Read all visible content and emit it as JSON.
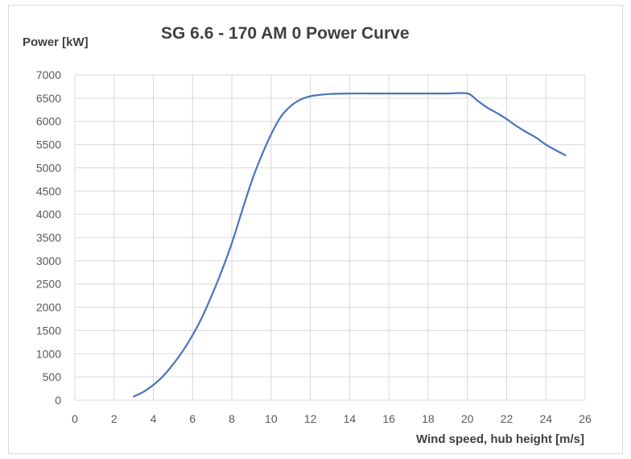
{
  "chart_data": {
    "type": "line",
    "title": "SG 6.6 - 170 AM 0 Power Curve",
    "ylabel": "Power [kW]",
    "xlabel": "Wind speed, hub height [m/s]",
    "xlim": [
      0,
      26
    ],
    "ylim": [
      0,
      7000
    ],
    "xticks": [
      0,
      2,
      4,
      6,
      8,
      10,
      12,
      14,
      16,
      18,
      20,
      22,
      24,
      26
    ],
    "yticks": [
      0,
      500,
      1000,
      1500,
      2000,
      2500,
      3000,
      3500,
      4000,
      4500,
      5000,
      5500,
      6000,
      6500,
      7000
    ],
    "grid": true,
    "series": [
      {
        "color": "#4a74c0",
        "x": [
          3,
          3.5,
          4,
          4.5,
          5,
          5.5,
          6,
          6.5,
          7,
          7.5,
          8,
          8.5,
          9,
          9.5,
          10,
          10.5,
          11,
          11.5,
          12,
          12.5,
          13,
          14,
          15,
          16,
          17,
          18,
          19,
          20,
          20.5,
          21,
          21.5,
          22,
          22.5,
          23,
          23.5,
          24,
          24.5,
          25
        ],
        "y": [
          80,
          180,
          330,
          520,
          770,
          1060,
          1400,
          1800,
          2280,
          2800,
          3380,
          4050,
          4700,
          5250,
          5720,
          6100,
          6330,
          6470,
          6540,
          6570,
          6590,
          6600,
          6600,
          6600,
          6600,
          6600,
          6600,
          6600,
          6450,
          6300,
          6180,
          6050,
          5900,
          5770,
          5650,
          5500,
          5380,
          5270
        ]
      }
    ]
  }
}
